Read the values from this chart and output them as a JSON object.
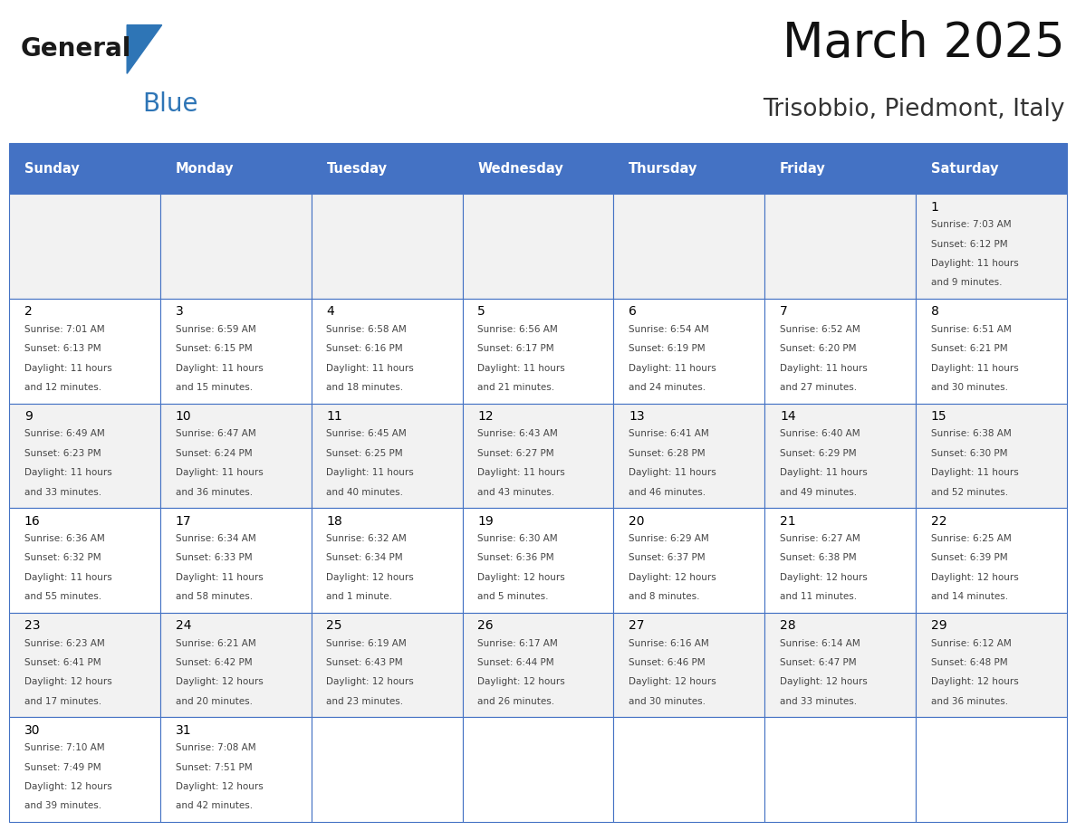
{
  "title": "March 2025",
  "subtitle": "Trisobbio, Piedmont, Italy",
  "days_of_week": [
    "Sunday",
    "Monday",
    "Tuesday",
    "Wednesday",
    "Thursday",
    "Friday",
    "Saturday"
  ],
  "header_bg": "#4472C4",
  "header_text": "#FFFFFF",
  "row_bg_odd": "#F2F2F2",
  "row_bg_even": "#FFFFFF",
  "cell_border": "#4472C4",
  "day_number_color": "#000000",
  "text_color": "#444444",
  "logo_general_color": "#1a1a1a",
  "logo_blue_color": "#2E75B6",
  "calendar_data": [
    [
      null,
      null,
      null,
      null,
      null,
      null,
      {
        "day": 1,
        "rise": "7:03 AM",
        "set": "6:12 PM",
        "daylight": "11 hours\nand 9 minutes."
      }
    ],
    [
      {
        "day": 2,
        "rise": "7:01 AM",
        "set": "6:13 PM",
        "daylight": "11 hours\nand 12 minutes."
      },
      {
        "day": 3,
        "rise": "6:59 AM",
        "set": "6:15 PM",
        "daylight": "11 hours\nand 15 minutes."
      },
      {
        "day": 4,
        "rise": "6:58 AM",
        "set": "6:16 PM",
        "daylight": "11 hours\nand 18 minutes."
      },
      {
        "day": 5,
        "rise": "6:56 AM",
        "set": "6:17 PM",
        "daylight": "11 hours\nand 21 minutes."
      },
      {
        "day": 6,
        "rise": "6:54 AM",
        "set": "6:19 PM",
        "daylight": "11 hours\nand 24 minutes."
      },
      {
        "day": 7,
        "rise": "6:52 AM",
        "set": "6:20 PM",
        "daylight": "11 hours\nand 27 minutes."
      },
      {
        "day": 8,
        "rise": "6:51 AM",
        "set": "6:21 PM",
        "daylight": "11 hours\nand 30 minutes."
      }
    ],
    [
      {
        "day": 9,
        "rise": "6:49 AM",
        "set": "6:23 PM",
        "daylight": "11 hours\nand 33 minutes."
      },
      {
        "day": 10,
        "rise": "6:47 AM",
        "set": "6:24 PM",
        "daylight": "11 hours\nand 36 minutes."
      },
      {
        "day": 11,
        "rise": "6:45 AM",
        "set": "6:25 PM",
        "daylight": "11 hours\nand 40 minutes."
      },
      {
        "day": 12,
        "rise": "6:43 AM",
        "set": "6:27 PM",
        "daylight": "11 hours\nand 43 minutes."
      },
      {
        "day": 13,
        "rise": "6:41 AM",
        "set": "6:28 PM",
        "daylight": "11 hours\nand 46 minutes."
      },
      {
        "day": 14,
        "rise": "6:40 AM",
        "set": "6:29 PM",
        "daylight": "11 hours\nand 49 minutes."
      },
      {
        "day": 15,
        "rise": "6:38 AM",
        "set": "6:30 PM",
        "daylight": "11 hours\nand 52 minutes."
      }
    ],
    [
      {
        "day": 16,
        "rise": "6:36 AM",
        "set": "6:32 PM",
        "daylight": "11 hours\nand 55 minutes."
      },
      {
        "day": 17,
        "rise": "6:34 AM",
        "set": "6:33 PM",
        "daylight": "11 hours\nand 58 minutes."
      },
      {
        "day": 18,
        "rise": "6:32 AM",
        "set": "6:34 PM",
        "daylight": "12 hours\nand 1 minute."
      },
      {
        "day": 19,
        "rise": "6:30 AM",
        "set": "6:36 PM",
        "daylight": "12 hours\nand 5 minutes."
      },
      {
        "day": 20,
        "rise": "6:29 AM",
        "set": "6:37 PM",
        "daylight": "12 hours\nand 8 minutes."
      },
      {
        "day": 21,
        "rise": "6:27 AM",
        "set": "6:38 PM",
        "daylight": "12 hours\nand 11 minutes."
      },
      {
        "day": 22,
        "rise": "6:25 AM",
        "set": "6:39 PM",
        "daylight": "12 hours\nand 14 minutes."
      }
    ],
    [
      {
        "day": 23,
        "rise": "6:23 AM",
        "set": "6:41 PM",
        "daylight": "12 hours\nand 17 minutes."
      },
      {
        "day": 24,
        "rise": "6:21 AM",
        "set": "6:42 PM",
        "daylight": "12 hours\nand 20 minutes."
      },
      {
        "day": 25,
        "rise": "6:19 AM",
        "set": "6:43 PM",
        "daylight": "12 hours\nand 23 minutes."
      },
      {
        "day": 26,
        "rise": "6:17 AM",
        "set": "6:44 PM",
        "daylight": "12 hours\nand 26 minutes."
      },
      {
        "day": 27,
        "rise": "6:16 AM",
        "set": "6:46 PM",
        "daylight": "12 hours\nand 30 minutes."
      },
      {
        "day": 28,
        "rise": "6:14 AM",
        "set": "6:47 PM",
        "daylight": "12 hours\nand 33 minutes."
      },
      {
        "day": 29,
        "rise": "6:12 AM",
        "set": "6:48 PM",
        "daylight": "12 hours\nand 36 minutes."
      }
    ],
    [
      {
        "day": 30,
        "rise": "7:10 AM",
        "set": "7:49 PM",
        "daylight": "12 hours\nand 39 minutes."
      },
      {
        "day": 31,
        "rise": "7:08 AM",
        "set": "7:51 PM",
        "daylight": "12 hours\nand 42 minutes."
      },
      null,
      null,
      null,
      null,
      null
    ]
  ]
}
